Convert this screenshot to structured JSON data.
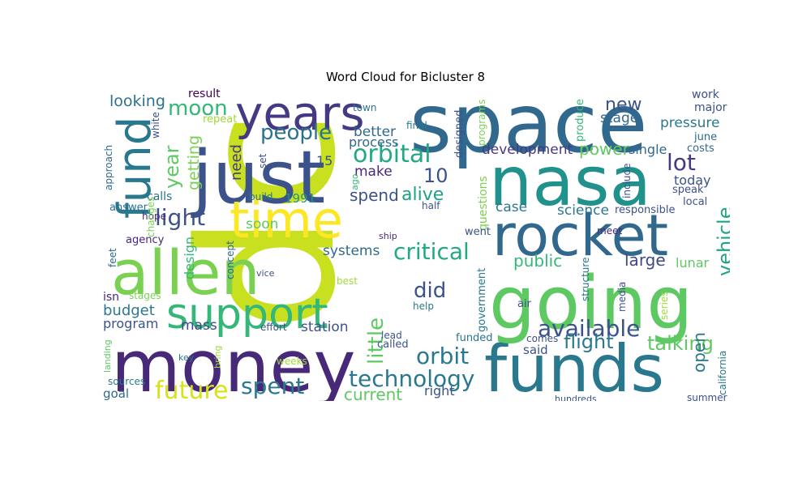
{
  "title": "Word Cloud for Bicluster 8",
  "words": [
    {
      "text": "dc",
      "color": "#c8e020"
    },
    {
      "text": "space",
      "color": "#31688e"
    },
    {
      "text": "just",
      "color": "#3b528b"
    },
    {
      "text": "nasa",
      "color": "#21918c"
    },
    {
      "text": "money",
      "color": "#482878"
    },
    {
      "text": "funds",
      "color": "#2a788e"
    },
    {
      "text": "going",
      "color": "#5ec962"
    },
    {
      "text": "allen",
      "color": "#7ad151"
    },
    {
      "text": "rocket",
      "color": "#31688e"
    },
    {
      "text": "time",
      "color": "#fde725"
    },
    {
      "text": "years",
      "color": "#443983"
    },
    {
      "text": "fund",
      "color": "#2a788e"
    },
    {
      "text": "support",
      "color": "#35b779"
    },
    {
      "text": "critical",
      "color": "#22a884"
    },
    {
      "text": "technology",
      "color": "#2a788e"
    },
    {
      "text": "available",
      "color": "#3b528b"
    },
    {
      "text": "orbital",
      "color": "#22a884"
    },
    {
      "text": "future",
      "color": "#d8e219"
    },
    {
      "text": "spent",
      "color": "#2a788e"
    },
    {
      "text": "people",
      "color": "#2c728e"
    },
    {
      "text": "moon",
      "color": "#35b779"
    },
    {
      "text": "orbit",
      "color": "#2a788e"
    },
    {
      "text": "light",
      "color": "#3b528b"
    },
    {
      "text": "little",
      "color": "#5ec962"
    },
    {
      "text": "year",
      "color": "#5ec962"
    },
    {
      "text": "vehicle",
      "color": "#20a386"
    },
    {
      "text": "did",
      "color": "#3b528b"
    },
    {
      "text": "lot",
      "color": "#443983"
    },
    {
      "text": "flight",
      "color": "#2a788e"
    },
    {
      "text": "talking",
      "color": "#5ec962"
    },
    {
      "text": "alive",
      "color": "#1fa188"
    },
    {
      "text": "10",
      "color": "#3b528b"
    },
    {
      "text": "new",
      "color": "#3b528b"
    },
    {
      "text": "power",
      "color": "#5ec962"
    },
    {
      "text": "spend",
      "color": "#3b528b"
    },
    {
      "text": "current",
      "color": "#5ec962"
    },
    {
      "text": "public",
      "color": "#35b779"
    },
    {
      "text": "large",
      "color": "#3e4989"
    },
    {
      "text": "open",
      "color": "#2a788e"
    },
    {
      "text": "looking",
      "color": "#2c728e"
    },
    {
      "text": "getting",
      "color": "#7ad151"
    },
    {
      "text": "budget",
      "color": "#2a788e"
    },
    {
      "text": "development",
      "color": "#443983"
    },
    {
      "text": "stage",
      "color": "#31688e"
    },
    {
      "text": "pressure",
      "color": "#2a788e"
    },
    {
      "text": "need",
      "color": "#443983"
    },
    {
      "text": "soon",
      "color": "#5ec962"
    },
    {
      "text": "systems",
      "color": "#31688e"
    },
    {
      "text": "make",
      "color": "#482878"
    },
    {
      "text": "better",
      "color": "#31688e"
    },
    {
      "text": "science",
      "color": "#2a788e"
    },
    {
      "text": "program",
      "color": "#3b528b"
    },
    {
      "text": "mass",
      "color": "#3e4989"
    },
    {
      "text": "station",
      "color": "#3b528b"
    },
    {
      "text": "single",
      "color": "#31688e"
    },
    {
      "text": "today",
      "color": "#3b528b"
    },
    {
      "text": "case",
      "color": "#2a788e"
    },
    {
      "text": "said",
      "color": "#3b528b"
    },
    {
      "text": "right",
      "color": "#3b528b"
    },
    {
      "text": "goal",
      "color": "#31688e"
    },
    {
      "text": "design",
      "color": "#35b779"
    },
    {
      "text": "process",
      "color": "#31688e"
    },
    {
      "text": "1991",
      "color": "#21918c"
    },
    {
      "text": "15",
      "color": "#3b528b"
    },
    {
      "text": "lunar",
      "color": "#5ec962"
    },
    {
      "text": "work",
      "color": "#3b528b"
    },
    {
      "text": "major",
      "color": "#3b528b"
    },
    {
      "text": "june",
      "color": "#31688e"
    },
    {
      "text": "costs",
      "color": "#31688e"
    },
    {
      "text": "isn",
      "color": "#482878"
    },
    {
      "text": "agency",
      "color": "#482878"
    },
    {
      "text": "answer",
      "color": "#2c728e"
    },
    {
      "text": "hope",
      "color": "#482878"
    },
    {
      "text": "calls",
      "color": "#2c728e"
    },
    {
      "text": "approach",
      "color": "#31688e"
    },
    {
      "text": "result",
      "color": "#440154"
    },
    {
      "text": "repeat",
      "color": "#a0da39"
    },
    {
      "text": "town",
      "color": "#2c728e"
    },
    {
      "text": "final",
      "color": "#2a788e"
    },
    {
      "text": "designed",
      "color": "#3b528b"
    },
    {
      "text": "programs",
      "color": "#7ad151"
    },
    {
      "text": "produce",
      "color": "#35b779"
    },
    {
      "text": "include",
      "color": "#3b528b"
    },
    {
      "text": "speak",
      "color": "#3b528b"
    },
    {
      "text": "local",
      "color": "#3b528b"
    },
    {
      "text": "responsible",
      "color": "#3b528b"
    },
    {
      "text": "meet",
      "color": "#482878"
    },
    {
      "text": "ago",
      "color": "#35b779"
    },
    {
      "text": "set",
      "color": "#3b528b"
    },
    {
      "text": "build",
      "color": "#2c728e"
    },
    {
      "text": "half",
      "color": "#3b528b"
    },
    {
      "text": "questions",
      "color": "#7ad151"
    },
    {
      "text": "went",
      "color": "#3b528b"
    },
    {
      "text": "ship",
      "color": "#482878"
    },
    {
      "text": "concept",
      "color": "#31688e"
    },
    {
      "text": "vice",
      "color": "#3b528b"
    },
    {
      "text": "best",
      "color": "#a0da39"
    },
    {
      "text": "help",
      "color": "#2a788e"
    },
    {
      "text": "government",
      "color": "#2a788e"
    },
    {
      "text": "air",
      "color": "#3b528b"
    },
    {
      "text": "structure",
      "color": "#2a788e"
    },
    {
      "text": "media",
      "color": "#3b528b"
    },
    {
      "text": "series",
      "color": "#a0da39"
    },
    {
      "text": "california",
      "color": "#2a788e"
    },
    {
      "text": "summer",
      "color": "#3b528b"
    },
    {
      "text": "hundreds",
      "color": "#3b528b"
    },
    {
      "text": "effort",
      "color": "#3b528b"
    },
    {
      "text": "lead",
      "color": "#3b528b"
    },
    {
      "text": "called",
      "color": "#3b528b"
    },
    {
      "text": "funded",
      "color": "#2c728e"
    },
    {
      "text": "comes",
      "color": "#3b528b"
    },
    {
      "text": "weeks",
      "color": "#a0da39"
    },
    {
      "text": "key",
      "color": "#2a788e"
    },
    {
      "text": "bring",
      "color": "#a0da39"
    },
    {
      "text": "landing",
      "color": "#5ec962"
    },
    {
      "text": "sources",
      "color": "#2a788e"
    },
    {
      "text": "stages",
      "color": "#7ad151"
    },
    {
      "text": "feet",
      "color": "#31688e"
    },
    {
      "text": "changes",
      "color": "#7ad151"
    },
    {
      "text": "white",
      "color": "#3b528b"
    }
  ]
}
